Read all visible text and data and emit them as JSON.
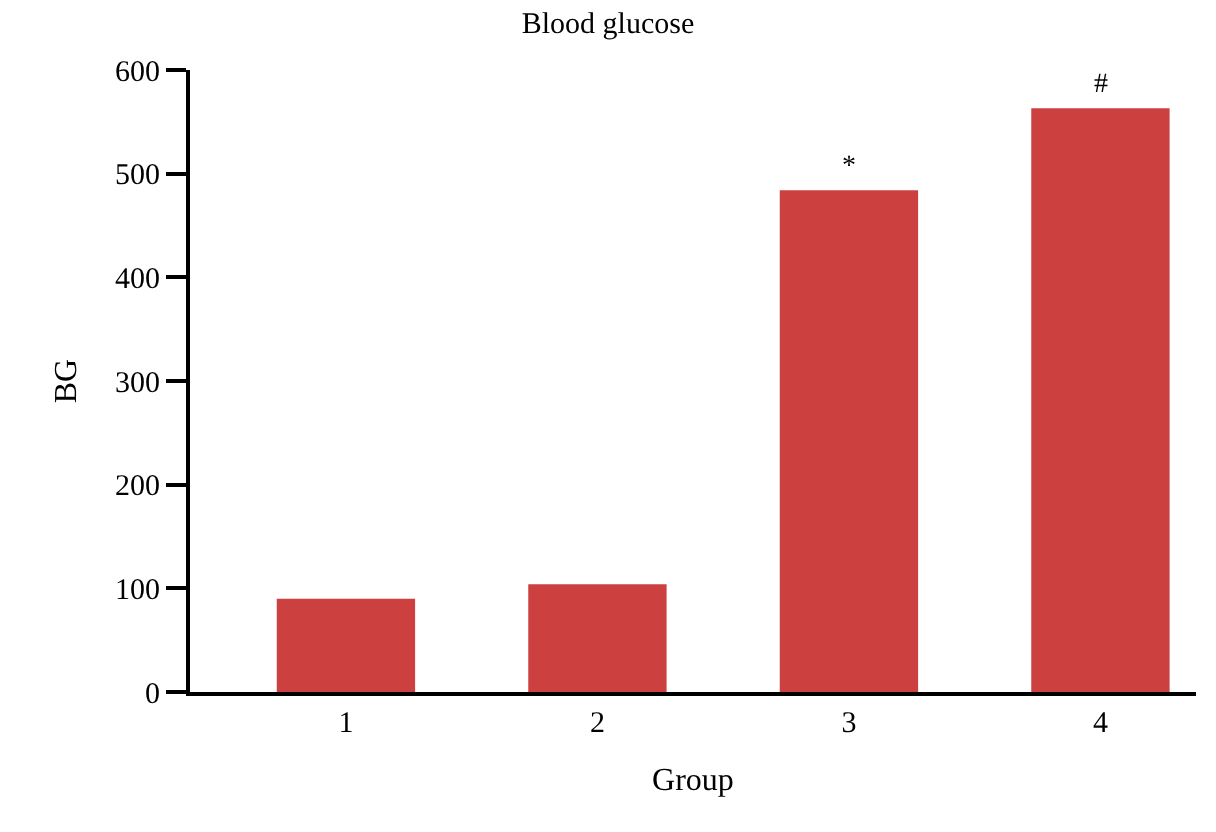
{
  "chart_data": {
    "type": "bar",
    "title": "Blood glucose",
    "xlabel": "Group",
    "ylabel": "BG",
    "categories": [
      "1",
      "2",
      "3",
      "4"
    ],
    "values": [
      90,
      104,
      484,
      563
    ],
    "color": "#cc4040",
    "ylim": [
      0,
      600
    ],
    "yticks": [
      0,
      100,
      200,
      300,
      400,
      500,
      600
    ],
    "annotations": [
      {
        "text": "*",
        "x": "3",
        "y": 484
      },
      {
        "text": "#",
        "x": "4",
        "y": 563
      }
    ]
  }
}
